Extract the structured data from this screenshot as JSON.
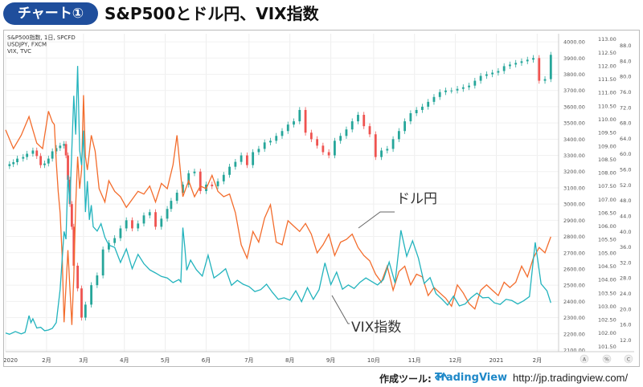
{
  "header": {
    "badge": "チャート①",
    "title": "S&P500とドル円、VIX指数"
  },
  "footer": {
    "tool_label": "作成ツール:",
    "tool_name": "TradingView",
    "url": "http://jp.tradingview.com/"
  },
  "colors": {
    "sp_up": "#26a69a",
    "sp_down": "#ef5350",
    "usdjpy": "#f36c2c",
    "vix": "#22b3bd",
    "badge": "#1f4e9c"
  },
  "chart_data": {
    "type": "line",
    "legend": [
      "S&P500指数, 1日, SPCFD",
      "USDJPY, FXCM",
      "VIX, TVC"
    ],
    "annotations": [
      {
        "text": "ドル円",
        "target": "USDJPY"
      },
      {
        "text": "VIX指数",
        "target": "VIX"
      }
    ],
    "x_ticks": [
      "2020",
      "2月",
      "3月",
      "4月",
      "5月",
      "6月",
      "7月",
      "8月",
      "9月",
      "10月",
      "11月",
      "12月",
      "2021",
      "2月"
    ],
    "axes": {
      "sp500": {
        "ticks": [
          4000,
          3900,
          3800,
          3700,
          3600,
          3500,
          3400,
          3300,
          3200,
          3100,
          3000,
          2900,
          2800,
          2700,
          2600,
          2500,
          2400,
          2300,
          2200,
          2100
        ],
        "range": [
          2090,
          4050
        ]
      },
      "usdjpy": {
        "ticks": [
          113.0,
          112.5,
          112.0,
          111.5,
          111.0,
          110.5,
          110.0,
          109.5,
          109.0,
          108.5,
          108.0,
          107.5,
          107.0,
          106.5,
          106.0,
          105.5,
          105.0,
          104.5,
          104.0,
          103.5,
          103.0,
          102.5,
          102.0,
          101.5
        ],
        "range": [
          101.3,
          113.2
        ]
      },
      "vix": {
        "ticks": [
          88.0,
          84.0,
          80.0,
          76.0,
          72.0,
          68.0,
          64.0,
          60.0,
          56.0,
          52.0,
          48.0,
          44.0,
          40.0,
          36.0,
          32.0,
          28.0,
          24.0,
          20.0,
          16.0,
          12.0
        ],
        "range": [
          9,
          91
        ]
      }
    },
    "axis_badges": [
      "A",
      "%",
      "C"
    ],
    "series": [
      {
        "name": "S&P500指数, 1日, SPCFD",
        "axis": "sp500",
        "kind": "candlestick",
        "x": [
          0,
          2,
          4,
          6,
          9,
          11,
          14,
          16,
          18,
          20,
          22,
          24,
          26,
          28,
          30,
          31,
          32,
          33,
          34,
          35,
          37,
          39,
          41,
          44,
          47,
          50,
          53,
          56,
          59,
          62,
          65,
          68,
          71,
          74,
          77,
          80,
          83,
          85,
          88,
          91,
          94,
          97,
          100,
          103,
          106,
          109,
          112,
          115,
          118,
          121,
          124,
          127,
          130,
          133,
          136,
          139,
          142,
          145,
          148,
          151,
          154,
          157,
          160,
          163,
          166,
          169,
          172,
          175,
          178,
          181,
          184,
          187,
          190,
          193,
          196,
          199,
          202,
          205,
          208,
          211,
          214,
          217,
          220,
          223,
          226,
          229,
          232,
          235,
          238,
          241,
          244,
          247,
          250,
          253,
          256,
          259,
          262,
          265,
          268,
          271,
          274,
          277,
          280
        ],
        "values": [
          3234,
          3246,
          3258,
          3280,
          3290,
          3310,
          3330,
          3296,
          3240,
          3250,
          3280,
          3325,
          3345,
          3360,
          3370,
          3300,
          3150,
          3000,
          2860,
          2620,
          2480,
          2300,
          2380,
          2500,
          2560,
          2720,
          2760,
          2790,
          2850,
          2900,
          2850,
          2880,
          2930,
          2950,
          2860,
          2910,
          2970,
          3020,
          3070,
          3120,
          3190,
          3200,
          3080,
          3120,
          3110,
          3140,
          3180,
          3230,
          3260,
          3300,
          3240,
          3320,
          3340,
          3380,
          3390,
          3420,
          3450,
          3490,
          3510,
          3580,
          3440,
          3400,
          3360,
          3320,
          3300,
          3390,
          3420,
          3460,
          3510,
          3550,
          3480,
          3430,
          3290,
          3330,
          3340,
          3400,
          3450,
          3510,
          3560,
          3580,
          3600,
          3630,
          3660,
          3690,
          3700,
          3700,
          3710,
          3720,
          3730,
          3760,
          3790,
          3800,
          3810,
          3820,
          3850,
          3860,
          3870,
          3880,
          3890,
          3900,
          3760,
          3770,
          3920
        ]
      },
      {
        "name": "USDJPY, FXCM",
        "axis": "usdjpy",
        "kind": "line",
        "x": [
          0,
          4,
          8,
          12,
          14,
          16,
          19,
          22,
          24,
          25,
          26,
          27,
          28,
          29,
          30,
          32,
          34,
          35,
          36,
          37,
          38,
          39,
          40,
          41,
          42,
          44,
          46,
          48,
          51,
          53,
          56,
          59,
          62,
          65,
          68,
          71,
          74,
          77,
          80,
          83,
          86,
          88,
          91,
          94,
          97,
          100,
          103,
          106,
          109,
          112,
          115,
          118,
          121,
          124,
          127,
          130,
          133,
          136,
          139,
          142,
          145,
          148,
          151,
          154,
          157,
          160,
          163,
          166,
          169,
          172,
          175,
          178,
          181,
          184,
          187,
          190,
          193,
          196,
          199,
          202,
          205,
          208,
          211,
          214,
          217,
          220,
          223,
          226,
          229,
          232,
          235,
          238,
          241,
          244,
          247,
          250,
          253,
          256,
          259,
          262,
          265,
          268,
          271,
          274,
          277,
          280
        ],
        "values": [
          109.6,
          108.9,
          109.4,
          110.1,
          109.6,
          109.1,
          108.9,
          110.3,
          109.9,
          109.8,
          108.4,
          107.3,
          106.5,
          104.9,
          102.4,
          105.1,
          102.3,
          104.1,
          106.8,
          108.6,
          107.4,
          108.1,
          110.9,
          108.6,
          108.1,
          109.4,
          108.8,
          107.4,
          106.9,
          107.7,
          107.3,
          107.1,
          106.7,
          107.0,
          107.3,
          107.2,
          107.5,
          106.9,
          107.6,
          107.4,
          108.3,
          109.4,
          107.1,
          107.7,
          107.1,
          107.5,
          107.4,
          107.9,
          107.3,
          107.1,
          107.2,
          106.5,
          105.3,
          104.8,
          105.8,
          105.4,
          106.3,
          106.8,
          105.4,
          105.3,
          106.2,
          106.0,
          105.8,
          106.1,
          105.7,
          105.0,
          105.3,
          105.7,
          104.9,
          105.4,
          105.5,
          105.7,
          105.2,
          104.9,
          104.7,
          104.2,
          103.9,
          104.5,
          103.6,
          104.3,
          104.5,
          103.8,
          104.2,
          104.1,
          103.4,
          103.7,
          103.5,
          103.3,
          103.0,
          103.8,
          103.5,
          103.1,
          102.9,
          103.6,
          103.8,
          103.6,
          103.4,
          103.9,
          103.7,
          103.9,
          104.5,
          104.1,
          104.8,
          105.2,
          105.0,
          105.6
        ]
      },
      {
        "name": "VIX, TVC",
        "axis": "vix",
        "kind": "line",
        "x": [
          0,
          2,
          5,
          8,
          10,
          11,
          12,
          13,
          14,
          16,
          18,
          20,
          22,
          24,
          26,
          28,
          30,
          31,
          32,
          33,
          35,
          36,
          37,
          38,
          39,
          40,
          41,
          42,
          43,
          44,
          45,
          47,
          49,
          51,
          53,
          56,
          59,
          62,
          65,
          68,
          71,
          74,
          77,
          80,
          83,
          86,
          89,
          90,
          91,
          92,
          93,
          95,
          98,
          101,
          104,
          107,
          110,
          113,
          116,
          119,
          122,
          125,
          128,
          131,
          134,
          137,
          140,
          143,
          146,
          149,
          152,
          155,
          158,
          161,
          164,
          167,
          170,
          173,
          176,
          179,
          182,
          185,
          188,
          191,
          194,
          197,
          200,
          203,
          206,
          209,
          212,
          215,
          218,
          221,
          224,
          227,
          230,
          233,
          236,
          239,
          242,
          245,
          248,
          251,
          254,
          257,
          260,
          263,
          266,
          269,
          272,
          275,
          278,
          280
        ],
        "values": [
          13.8,
          13.5,
          14.2,
          13.6,
          14.0,
          16.0,
          18.3,
          16.5,
          17.5,
          15.1,
          15.3,
          14.4,
          14.6,
          15.0,
          16.5,
          25.0,
          40.0,
          38.0,
          54.5,
          47.0,
          75.0,
          65.0,
          82.7,
          61.0,
          57.1,
          66.0,
          45.0,
          53.0,
          43.0,
          46.8,
          41.2,
          40.1,
          42.0,
          38.5,
          36.5,
          35.9,
          32.0,
          35.5,
          30.4,
          34.1,
          31.7,
          30.1,
          29.3,
          28.4,
          28.0,
          26.8,
          27.6,
          27.0,
          41.0,
          36.0,
          30.0,
          32.6,
          30.1,
          28.5,
          33.9,
          28.0,
          29.1,
          30.4,
          26.1,
          27.4,
          26.4,
          25.8,
          24.5,
          25.0,
          26.4,
          24.3,
          22.5,
          22.9,
          22.3,
          24.7,
          21.9,
          25.5,
          22.5,
          25.0,
          31.9,
          26.3,
          29.5,
          25.1,
          26.2,
          25.3,
          26.9,
          28.0,
          27.1,
          26.2,
          27.6,
          32.1,
          26.7,
          40.3,
          33.6,
          37.6,
          33.1,
          26.6,
          28.1,
          24.0,
          22.6,
          21.0,
          23.3,
          20.8,
          21.3,
          22.9,
          24.1,
          22.9,
          23.0,
          21.6,
          21.2,
          22.5,
          22.2,
          21.3,
          22.1,
          23.2,
          37.2,
          26.5,
          24.7,
          21.6
        ]
      }
    ]
  }
}
